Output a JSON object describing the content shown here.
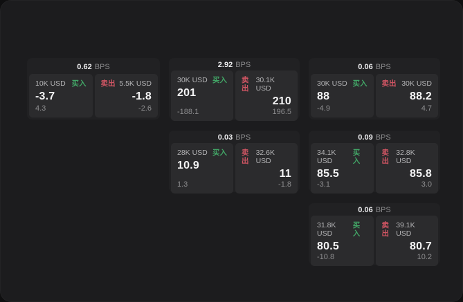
{
  "labels": {
    "bps_unit": "BPS",
    "buy": "买入",
    "sell": "卖出"
  },
  "colors": {
    "canvas_bg": "#1c1c1e",
    "card_bg": "#212123",
    "panel_bg": "#2b2b2d",
    "buy_green": "#42a566",
    "sell_red": "#d05563",
    "value_white": "#f4f4f5",
    "muted_gray": "#8e8e90"
  },
  "cards": [
    {
      "bps": "0.62",
      "buy": {
        "notional": "10K USD",
        "value": "-3.7",
        "sub": "4.3"
      },
      "sell": {
        "notional": "5.5K USD",
        "value": "-1.8",
        "sub": "-2.6"
      }
    },
    {
      "bps": "2.92",
      "buy": {
        "notional": "30K USD",
        "value": "201",
        "sub": "-188.1"
      },
      "sell": {
        "notional": "30.1K USD",
        "value": "210",
        "sub": "196.5"
      }
    },
    {
      "bps": "0.06",
      "buy": {
        "notional": "30K USD",
        "value": "88",
        "sub": "-4.9"
      },
      "sell": {
        "notional": "30K USD",
        "value": "88.2",
        "sub": "4.7"
      }
    },
    {
      "bps": "0.03",
      "buy": {
        "notional": "28K USD",
        "value": "10.9",
        "sub": "1.3"
      },
      "sell": {
        "notional": "32.6K USD",
        "value": "11",
        "sub": "-1.8"
      }
    },
    {
      "bps": "0.09",
      "buy": {
        "notional": "34.1K USD",
        "value": "85.5",
        "sub": "-3.1"
      },
      "sell": {
        "notional": "32.8K USD",
        "value": "85.8",
        "sub": "3.0"
      }
    },
    {
      "bps": "0.06",
      "buy": {
        "notional": "31.8K USD",
        "value": "80.5",
        "sub": "-10.8"
      },
      "sell": {
        "notional": "39.1K USD",
        "value": "80.7",
        "sub": "10.2"
      }
    }
  ]
}
